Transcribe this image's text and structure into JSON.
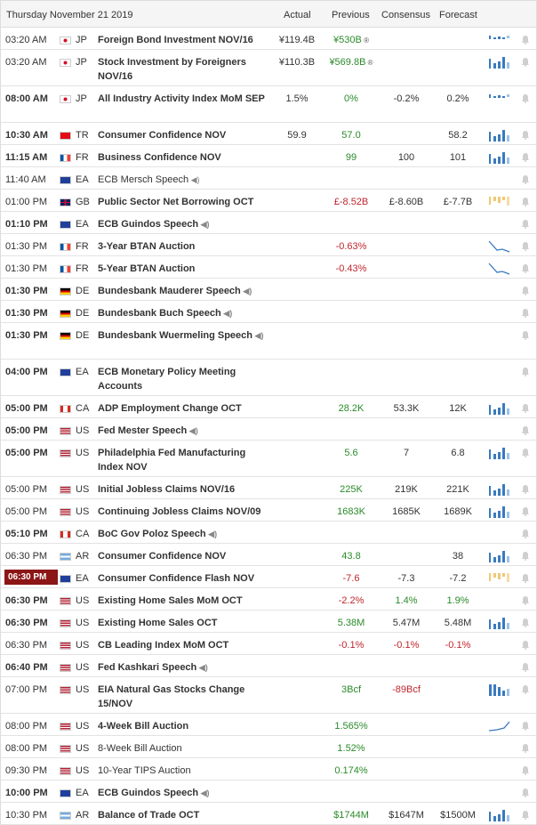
{
  "header": {
    "date": "Thursday November 21 2019",
    "col_actual": "Actual",
    "col_previous": "Previous",
    "col_consensus": "Consensus",
    "col_forecast": "Forecast"
  },
  "colors": {
    "green": "#2a8a2a",
    "red": "#c0262d",
    "bar_blue": "#3a7abf",
    "bar_yellow": "#f0c874",
    "highlight": "#8c1515"
  },
  "speaker_glyph": "◀)",
  "revised_glyph": "®",
  "rows": [
    {
      "time": "03:20 AM",
      "bold": false,
      "flag": "JP",
      "cc": "JP",
      "event": "Foreign Bond Investment NOV/16",
      "ebold": true,
      "actual": "¥119.4B",
      "previous": "¥530B",
      "prev_color": "green",
      "prev_mark": true,
      "consensus": "",
      "forecast": "",
      "chart": "bars-small",
      "tall": false
    },
    {
      "time": "03:20 AM",
      "bold": false,
      "flag": "JP",
      "cc": "JP",
      "event": "Stock Investment by Foreigners NOV/16",
      "ebold": true,
      "actual": "¥110.3B",
      "previous": "¥569.8B",
      "prev_color": "green",
      "prev_mark": true,
      "consensus": "",
      "forecast": "",
      "chart": "bars",
      "tall": true
    },
    {
      "time": "08:00 AM",
      "bold": true,
      "flag": "JP",
      "cc": "JP",
      "event": "All Industry Activity Index MoM SEP",
      "ebold": true,
      "actual": "1.5%",
      "previous": "0%",
      "prev_color": "green",
      "prev_mark": false,
      "consensus": "-0.2%",
      "forecast": "0.2%",
      "chart": "bars-small",
      "tall": true
    },
    {
      "time": "10:30 AM",
      "bold": true,
      "flag": "TR",
      "cc": "TR",
      "event": "Consumer Confidence NOV",
      "ebold": true,
      "actual": "59.9",
      "previous": "57.0",
      "prev_color": "green",
      "prev_mark": false,
      "consensus": "",
      "forecast": "58.2",
      "chart": "bars",
      "tall": false
    },
    {
      "time": "11:15 AM",
      "bold": true,
      "flag": "FR",
      "cc": "FR",
      "event": "Business Confidence NOV",
      "ebold": true,
      "actual": "",
      "previous": "99",
      "prev_color": "green",
      "prev_mark": false,
      "consensus": "100",
      "forecast": "101",
      "chart": "bars",
      "tall": false
    },
    {
      "time": "11:40 AM",
      "bold": false,
      "flag": "EA",
      "cc": "EA",
      "event": "ECB Mersch Speech",
      "ebold": false,
      "speech": true,
      "actual": "",
      "previous": "",
      "prev_color": "",
      "prev_mark": false,
      "consensus": "",
      "forecast": "",
      "chart": "",
      "tall": false
    },
    {
      "time": "01:00 PM",
      "bold": false,
      "flag": "GB",
      "cc": "GB",
      "event": "Public Sector Net Borrowing OCT",
      "ebold": true,
      "actual": "",
      "previous": "£-8.52B",
      "prev_color": "red",
      "prev_mark": false,
      "consensus": "£-8.60B",
      "forecast": "£-7.7B",
      "chart": "bars-yellow",
      "tall": false
    },
    {
      "time": "01:10 PM",
      "bold": true,
      "flag": "EA",
      "cc": "EA",
      "event": "ECB Guindos Speech",
      "ebold": true,
      "speech": true,
      "actual": "",
      "previous": "",
      "prev_color": "",
      "prev_mark": false,
      "consensus": "",
      "forecast": "",
      "chart": "",
      "tall": false
    },
    {
      "time": "01:30 PM",
      "bold": false,
      "flag": "FR",
      "cc": "FR",
      "event": "3-Year BTAN Auction",
      "ebold": true,
      "actual": "",
      "previous": "-0.63%",
      "prev_color": "red",
      "prev_mark": false,
      "consensus": "",
      "forecast": "",
      "chart": "line-down",
      "tall": false
    },
    {
      "time": "01:30 PM",
      "bold": false,
      "flag": "FR",
      "cc": "FR",
      "event": "5-Year BTAN Auction",
      "ebold": true,
      "actual": "",
      "previous": "-0.43%",
      "prev_color": "red",
      "prev_mark": false,
      "consensus": "",
      "forecast": "",
      "chart": "line-down",
      "tall": false
    },
    {
      "time": "01:30 PM",
      "bold": true,
      "flag": "DE",
      "cc": "DE",
      "event": "Bundesbank Mauderer Speech",
      "ebold": true,
      "speech": true,
      "actual": "",
      "previous": "",
      "prev_color": "",
      "prev_mark": false,
      "consensus": "",
      "forecast": "",
      "chart": "",
      "tall": false
    },
    {
      "time": "01:30 PM",
      "bold": true,
      "flag": "DE",
      "cc": "DE",
      "event": "Bundesbank Buch Speech",
      "ebold": true,
      "speech": true,
      "actual": "",
      "previous": "",
      "prev_color": "",
      "prev_mark": false,
      "consensus": "",
      "forecast": "",
      "chart": "",
      "tall": false
    },
    {
      "time": "01:30 PM",
      "bold": true,
      "flag": "DE",
      "cc": "DE",
      "event": "Bundesbank Wuermeling Speech",
      "ebold": true,
      "speech": true,
      "actual": "",
      "previous": "",
      "prev_color": "",
      "prev_mark": false,
      "consensus": "",
      "forecast": "",
      "chart": "",
      "tall": true
    },
    {
      "time": "04:00 PM",
      "bold": true,
      "flag": "EA",
      "cc": "EA",
      "event": "ECB Monetary Policy Meeting Accounts",
      "ebold": true,
      "actual": "",
      "previous": "",
      "prev_color": "",
      "prev_mark": false,
      "consensus": "",
      "forecast": "",
      "chart": "",
      "tall": true
    },
    {
      "time": "05:00 PM",
      "bold": true,
      "flag": "CA",
      "cc": "CA",
      "event": "ADP Employment Change OCT",
      "ebold": true,
      "actual": "",
      "previous": "28.2K",
      "prev_color": "green",
      "prev_mark": false,
      "consensus": "53.3K",
      "forecast": "12K",
      "chart": "bars",
      "tall": false
    },
    {
      "time": "05:00 PM",
      "bold": true,
      "flag": "US",
      "cc": "US",
      "event": "Fed Mester Speech",
      "ebold": true,
      "speech": true,
      "actual": "",
      "previous": "",
      "prev_color": "",
      "prev_mark": false,
      "consensus": "",
      "forecast": "",
      "chart": "",
      "tall": false
    },
    {
      "time": "05:00 PM",
      "bold": true,
      "flag": "US",
      "cc": "US",
      "event": "Philadelphia Fed Manufacturing Index NOV",
      "ebold": true,
      "actual": "",
      "previous": "5.6",
      "prev_color": "green",
      "prev_mark": false,
      "consensus": "7",
      "forecast": "6.8",
      "chart": "bars",
      "tall": true
    },
    {
      "time": "05:00 PM",
      "bold": false,
      "flag": "US",
      "cc": "US",
      "event": "Initial Jobless Claims NOV/16",
      "ebold": true,
      "actual": "",
      "previous": "225K",
      "prev_color": "green",
      "prev_mark": false,
      "consensus": "219K",
      "forecast": "221K",
      "chart": "bars",
      "tall": false
    },
    {
      "time": "05:00 PM",
      "bold": false,
      "flag": "US",
      "cc": "US",
      "event": "Continuing Jobless Claims NOV/09",
      "ebold": true,
      "actual": "",
      "previous": "1683K",
      "prev_color": "green",
      "prev_mark": false,
      "consensus": "1685K",
      "forecast": "1689K",
      "chart": "bars",
      "tall": false
    },
    {
      "time": "05:10 PM",
      "bold": true,
      "flag": "CA",
      "cc": "CA",
      "event": "BoC Gov Poloz Speech",
      "ebold": true,
      "speech": true,
      "actual": "",
      "previous": "",
      "prev_color": "",
      "prev_mark": false,
      "consensus": "",
      "forecast": "",
      "chart": "",
      "tall": false
    },
    {
      "time": "06:30 PM",
      "bold": false,
      "flag": "AR",
      "cc": "AR",
      "event": "Consumer Confidence NOV",
      "ebold": true,
      "actual": "",
      "previous": "43.8",
      "prev_color": "green",
      "prev_mark": false,
      "consensus": "",
      "forecast": "38",
      "chart": "bars",
      "tall": false
    },
    {
      "time": "06:30 PM",
      "bold": true,
      "highlight": true,
      "flag": "EA",
      "cc": "EA",
      "event": "Consumer Confidence Flash NOV",
      "ebold": true,
      "actual": "",
      "previous": "-7.6",
      "prev_color": "red",
      "prev_mark": false,
      "consensus": "-7.3",
      "forecast": "-7.2",
      "chart": "bars-yellow",
      "tall": false
    },
    {
      "time": "06:30 PM",
      "bold": true,
      "flag": "US",
      "cc": "US",
      "event": "Existing Home Sales MoM OCT",
      "ebold": true,
      "actual": "",
      "previous": "-2.2%",
      "prev_color": "red",
      "prev_mark": false,
      "consensus": "1.4%",
      "cons_color": "green",
      "forecast": "1.9%",
      "fore_color": "green",
      "chart": "",
      "tall": false
    },
    {
      "time": "06:30 PM",
      "bold": true,
      "flag": "US",
      "cc": "US",
      "event": "Existing Home Sales OCT",
      "ebold": true,
      "actual": "",
      "previous": "5.38M",
      "prev_color": "green",
      "prev_mark": false,
      "consensus": "5.47M",
      "forecast": "5.48M",
      "chart": "bars",
      "tall": false
    },
    {
      "time": "06:30 PM",
      "bold": false,
      "flag": "US",
      "cc": "US",
      "event": "CB Leading Index MoM OCT",
      "ebold": true,
      "actual": "",
      "previous": "-0.1%",
      "prev_color": "red",
      "prev_mark": false,
      "consensus": "-0.1%",
      "cons_color": "red",
      "forecast": "-0.1%",
      "fore_color": "red",
      "chart": "",
      "tall": false
    },
    {
      "time": "06:40 PM",
      "bold": true,
      "flag": "US",
      "cc": "US",
      "event": "Fed Kashkari Speech",
      "ebold": true,
      "speech": true,
      "actual": "",
      "previous": "",
      "prev_color": "",
      "prev_mark": false,
      "consensus": "",
      "forecast": "",
      "chart": "",
      "tall": false
    },
    {
      "time": "07:00 PM",
      "bold": false,
      "flag": "US",
      "cc": "US",
      "event": "EIA Natural Gas Stocks Change 15/NOV",
      "ebold": true,
      "actual": "",
      "previous": "3Bcf",
      "prev_color": "green",
      "prev_mark": false,
      "consensus": "-89Bcf",
      "cons_color": "red",
      "forecast": "",
      "chart": "bars-big",
      "tall": true
    },
    {
      "time": "08:00 PM",
      "bold": false,
      "flag": "US",
      "cc": "US",
      "event": "4-Week Bill Auction",
      "ebold": true,
      "actual": "",
      "previous": "1.565%",
      "prev_color": "green",
      "prev_mark": false,
      "consensus": "",
      "forecast": "",
      "chart": "line-up",
      "tall": false
    },
    {
      "time": "08:00 PM",
      "bold": false,
      "flag": "US",
      "cc": "US",
      "event": "8-Week Bill Auction",
      "ebold": false,
      "actual": "",
      "previous": "1.52%",
      "prev_color": "green",
      "prev_mark": false,
      "consensus": "",
      "forecast": "",
      "chart": "",
      "tall": false
    },
    {
      "time": "09:30 PM",
      "bold": false,
      "flag": "US",
      "cc": "US",
      "event": "10-Year TIPS Auction",
      "ebold": false,
      "actual": "",
      "previous": "0.174%",
      "prev_color": "green",
      "prev_mark": false,
      "consensus": "",
      "forecast": "",
      "chart": "",
      "tall": false
    },
    {
      "time": "10:00 PM",
      "bold": true,
      "flag": "EA",
      "cc": "EA",
      "event": "ECB Guindos Speech",
      "ebold": true,
      "speech": true,
      "actual": "",
      "previous": "",
      "prev_color": "",
      "prev_mark": false,
      "consensus": "",
      "forecast": "",
      "chart": "",
      "tall": false
    },
    {
      "time": "10:30 PM",
      "bold": false,
      "flag": "AR",
      "cc": "AR",
      "event": "Balance of Trade OCT",
      "ebold": true,
      "actual": "",
      "previous": "$1744M",
      "prev_color": "green",
      "prev_mark": false,
      "consensus": "$1647M",
      "forecast": "$1500M",
      "chart": "bars",
      "tall": false
    }
  ]
}
